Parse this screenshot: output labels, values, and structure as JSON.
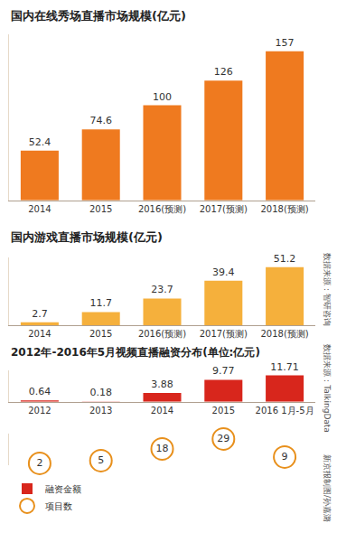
{
  "chart_data": [
    {
      "type": "bar",
      "title": "国内在线秀场直播市场规模(亿元)",
      "categories": [
        "2014",
        "2015",
        "2016(预测)",
        "2017(预测)",
        "2018(预测)"
      ],
      "values": [
        52.4,
        74.6,
        100,
        126,
        157
      ],
      "color": "#ef7a1f",
      "ylim": [
        0,
        175
      ],
      "data_labels": true,
      "tick_labels": "x",
      "grid": false
    },
    {
      "type": "bar",
      "title": "国内游戏直播市场规模(亿元)",
      "categories": [
        "2014",
        "2015",
        "2016(预测)",
        "2017(预测)",
        "2018(预测)"
      ],
      "values": [
        2.7,
        11.7,
        23.7,
        39.4,
        51.2
      ],
      "color": "#f5b03c",
      "ylim": [
        0,
        60
      ],
      "data_labels": true,
      "tick_labels": "x",
      "grid": false,
      "annotations": [
        "数据来源：智研咨询"
      ]
    },
    {
      "type": "bar",
      "title": "2012年-2016年5月视频直播融资分布(单位:亿元)",
      "categories": [
        "2012",
        "2013",
        "2014",
        "2015",
        "2016 1月-5月"
      ],
      "series": [
        {
          "name": "融资金额",
          "type": "bar",
          "color": "#d8261c",
          "values": [
            0.64,
            0.18,
            3.88,
            9.77,
            11.71
          ]
        },
        {
          "name": "项目数",
          "type": "scatter",
          "marker": "circle",
          "color": "#e8901c",
          "axis": "y2",
          "values": [
            2,
            5,
            18,
            29,
            9
          ]
        }
      ],
      "ylim": [
        0,
        14
      ],
      "y2lim": [
        0,
        35
      ],
      "data_labels": true,
      "tick_labels": "x",
      "legend": "bottom left",
      "grid": false,
      "annotations": [
        "数据来源：TalkingData",
        "新京报制图/孙嘉潞"
      ]
    }
  ]
}
